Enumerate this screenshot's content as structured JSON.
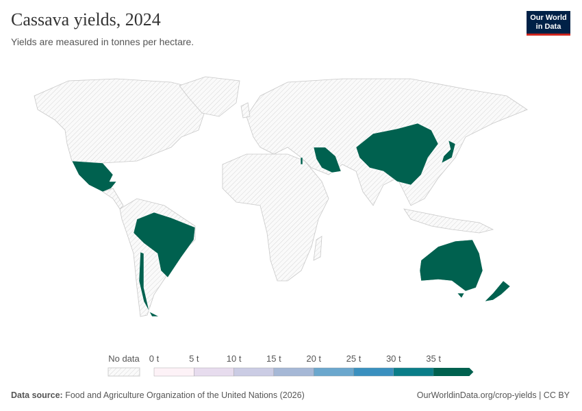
{
  "header": {
    "title": "Cassava yields, 2024",
    "subtitle": "Yields are measured in tonnes per hectare.",
    "logo": [
      "Our World",
      "in Data"
    ]
  },
  "legend": {
    "no_data": "No data",
    "ticks": [
      "0 t",
      "5 t",
      "10 t",
      "15 t",
      "20 t",
      "25 t",
      "30 t",
      "35 t"
    ],
    "colors": [
      "#fdf2f7",
      "#e7dcee",
      "#cbcce4",
      "#a6b8d6",
      "#6ba7cd",
      "#3a90bf",
      "#0a7d88",
      "#00614f"
    ]
  },
  "footer": {
    "source_label": "Data source:",
    "source": "Food and Agriculture Organization of the United Nations (2026)",
    "link": "OurWorldinData.org/crop-yields | CC BY"
  }
}
